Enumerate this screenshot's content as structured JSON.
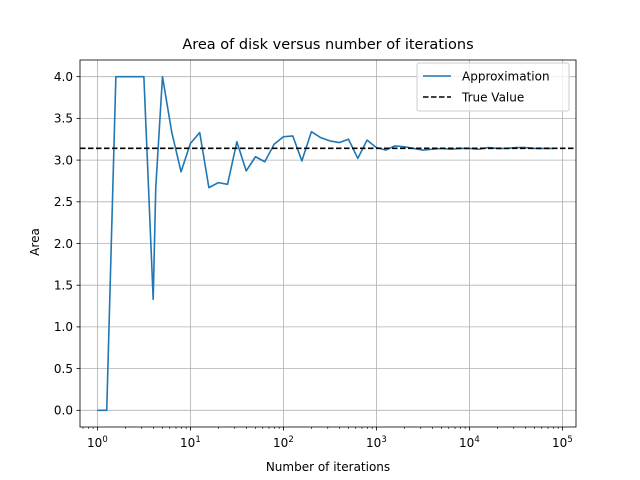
{
  "chart_data": {
    "type": "line",
    "title": "Area of disk versus number of iterations",
    "xlabel": "Number of iterations",
    "ylabel": "Area",
    "xscale": "log",
    "xlim": [
      0.65,
      140000
    ],
    "ylim": [
      -0.2,
      4.2
    ],
    "grid": true,
    "legend_position": "top-right",
    "xtick_labels": [
      {
        "value": 1,
        "base": "10",
        "exp": "0"
      },
      {
        "value": 10,
        "base": "10",
        "exp": "1"
      },
      {
        "value": 100,
        "base": "10",
        "exp": "2"
      },
      {
        "value": 1000,
        "base": "10",
        "exp": "3"
      },
      {
        "value": 10000,
        "base": "10",
        "exp": "4"
      },
      {
        "value": 100000,
        "base": "10",
        "exp": "5"
      }
    ],
    "yticks": [
      {
        "value": 0.0,
        "label": "0.0"
      },
      {
        "value": 0.5,
        "label": "0.5"
      },
      {
        "value": 1.0,
        "label": "1.0"
      },
      {
        "value": 1.5,
        "label": "1.5"
      },
      {
        "value": 2.0,
        "label": "2.0"
      },
      {
        "value": 2.5,
        "label": "2.5"
      },
      {
        "value": 3.0,
        "label": "3.0"
      },
      {
        "value": 3.5,
        "label": "3.5"
      },
      {
        "value": 4.0,
        "label": "4.0"
      }
    ],
    "series": [
      {
        "name": "Approximation",
        "color": "#1f77b4",
        "style": "solid",
        "x": [
          1,
          1.26,
          1.58,
          2.0,
          2.51,
          3.16,
          3.98,
          4.24,
          5.01,
          6.31,
          7.94,
          10.0,
          12.6,
          15.8,
          20.0,
          25.1,
          31.6,
          39.8,
          50.1,
          63.1,
          79.4,
          100,
          126,
          158,
          200,
          251,
          316,
          398,
          501,
          631,
          794,
          1000,
          1259,
          1585,
          1995,
          2512,
          3162,
          3981,
          5012,
          6310,
          7943,
          10000,
          12589,
          15849,
          19953,
          25119,
          31623,
          39811,
          50119,
          63096,
          79433
        ],
        "y": [
          0.0,
          0.0,
          4.0,
          4.0,
          4.0,
          4.0,
          1.33,
          2.67,
          4.0,
          3.33,
          2.86,
          3.2,
          3.33,
          2.67,
          2.73,
          2.71,
          3.22,
          2.87,
          3.04,
          2.98,
          3.19,
          3.28,
          3.29,
          2.99,
          3.34,
          3.27,
          3.23,
          3.21,
          3.25,
          3.02,
          3.24,
          3.15,
          3.12,
          3.17,
          3.16,
          3.14,
          3.12,
          3.13,
          3.14,
          3.13,
          3.14,
          3.14,
          3.13,
          3.15,
          3.14,
          3.14,
          3.15,
          3.15,
          3.14,
          3.14,
          3.14
        ]
      },
      {
        "name": "True Value",
        "color": "#000000",
        "style": "dashed",
        "y_constant": 3.1416
      }
    ]
  }
}
